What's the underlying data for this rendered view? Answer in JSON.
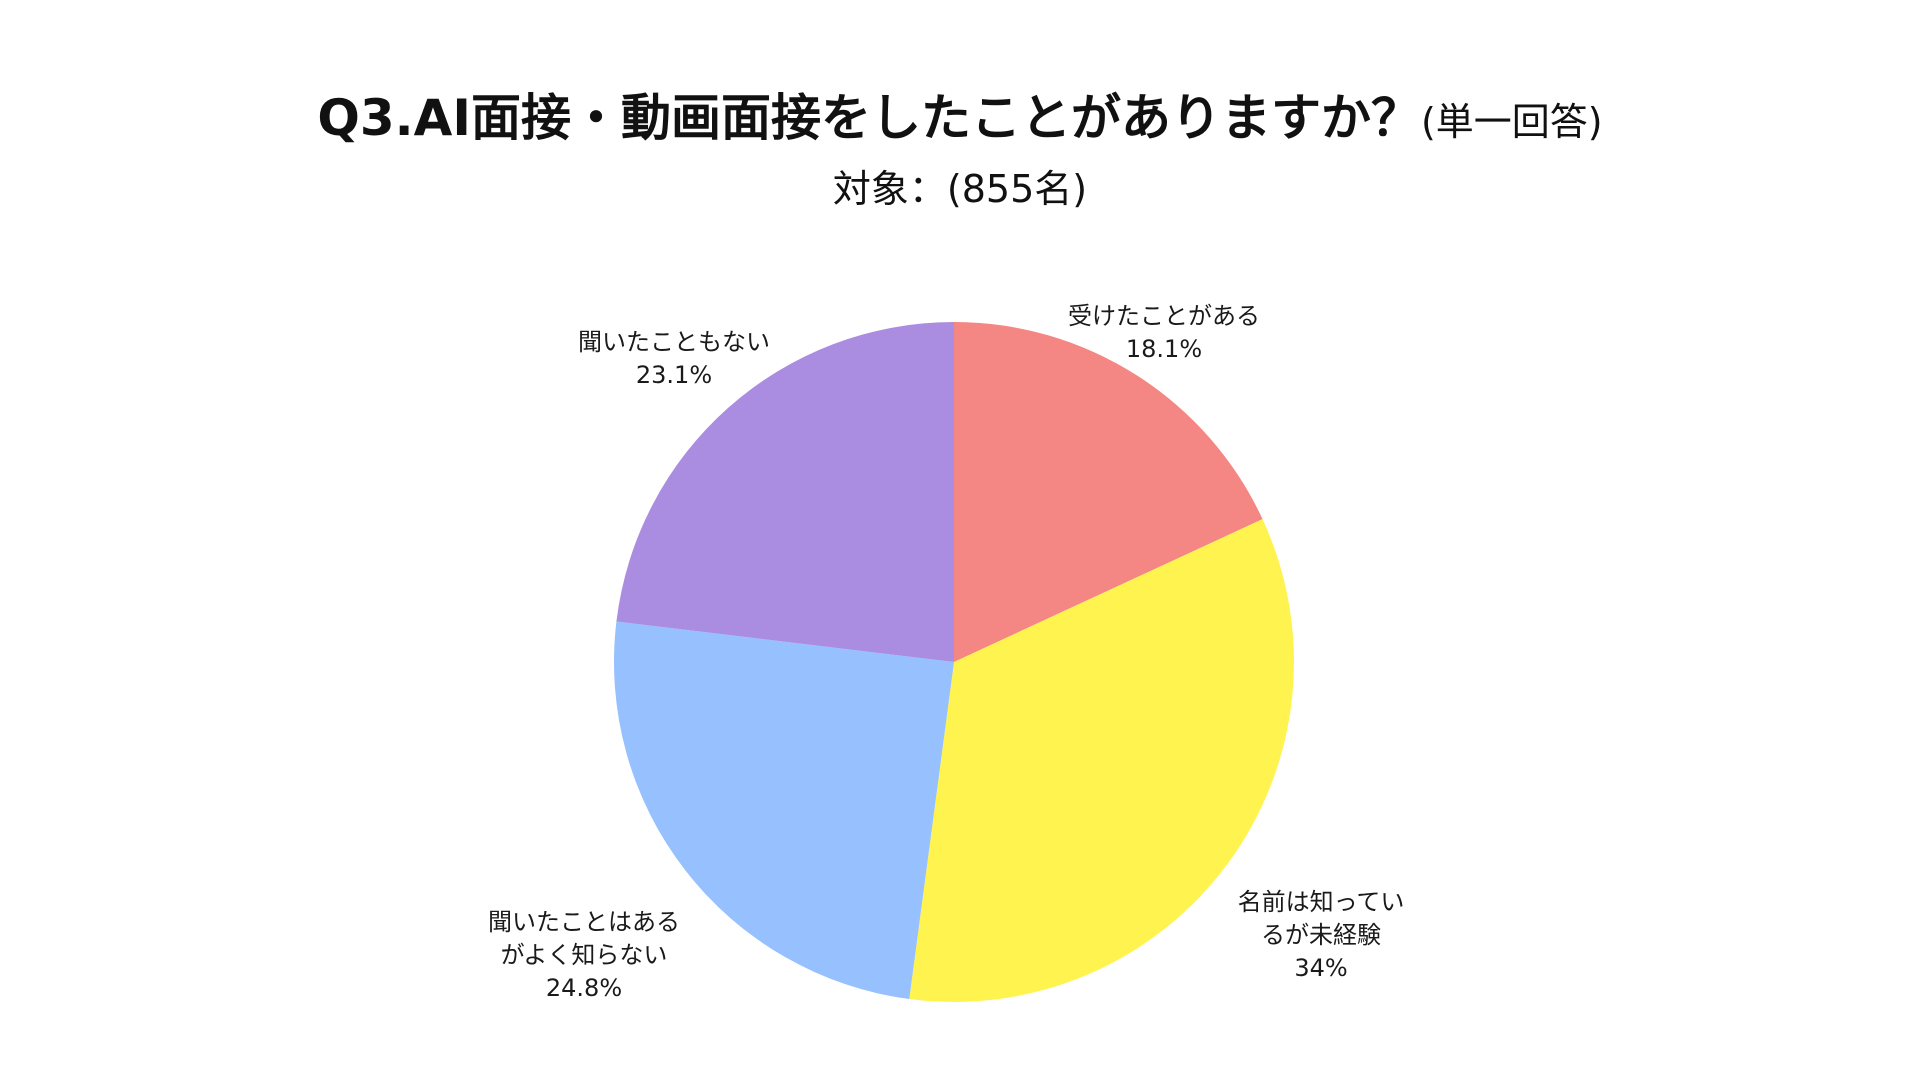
{
  "title": {
    "main": "Q3.AI面接・動画面接をしたことがありますか？",
    "note": "(単一回答)"
  },
  "subtitle": "対象：(855名)",
  "chart_data": {
    "type": "pie",
    "title": "Q3.AI面接・動画面接をしたことがありますか？(単一回答)",
    "subtitle": "対象：(855名)",
    "start_angle_deg": 0,
    "direction": "clockwise",
    "legend": "none",
    "slices": [
      {
        "label_lines": [
          "受けたことがある"
        ],
        "value": 18.1,
        "value_label": "18.1%",
        "color": "#F48683"
      },
      {
        "label_lines": [
          "名前は知ってい",
          "るが未経験"
        ],
        "value": 34,
        "value_label": "34%",
        "color": "#FFF350"
      },
      {
        "label_lines": [
          "聞いたことはある",
          "がよく知らない"
        ],
        "value": 24.8,
        "value_label": "24.8%",
        "color": "#96C0FE"
      },
      {
        "label_lines": [
          "聞いたこともない"
        ],
        "value": 23.1,
        "value_label": "23.1%",
        "color": "#AA8DE1"
      }
    ]
  }
}
